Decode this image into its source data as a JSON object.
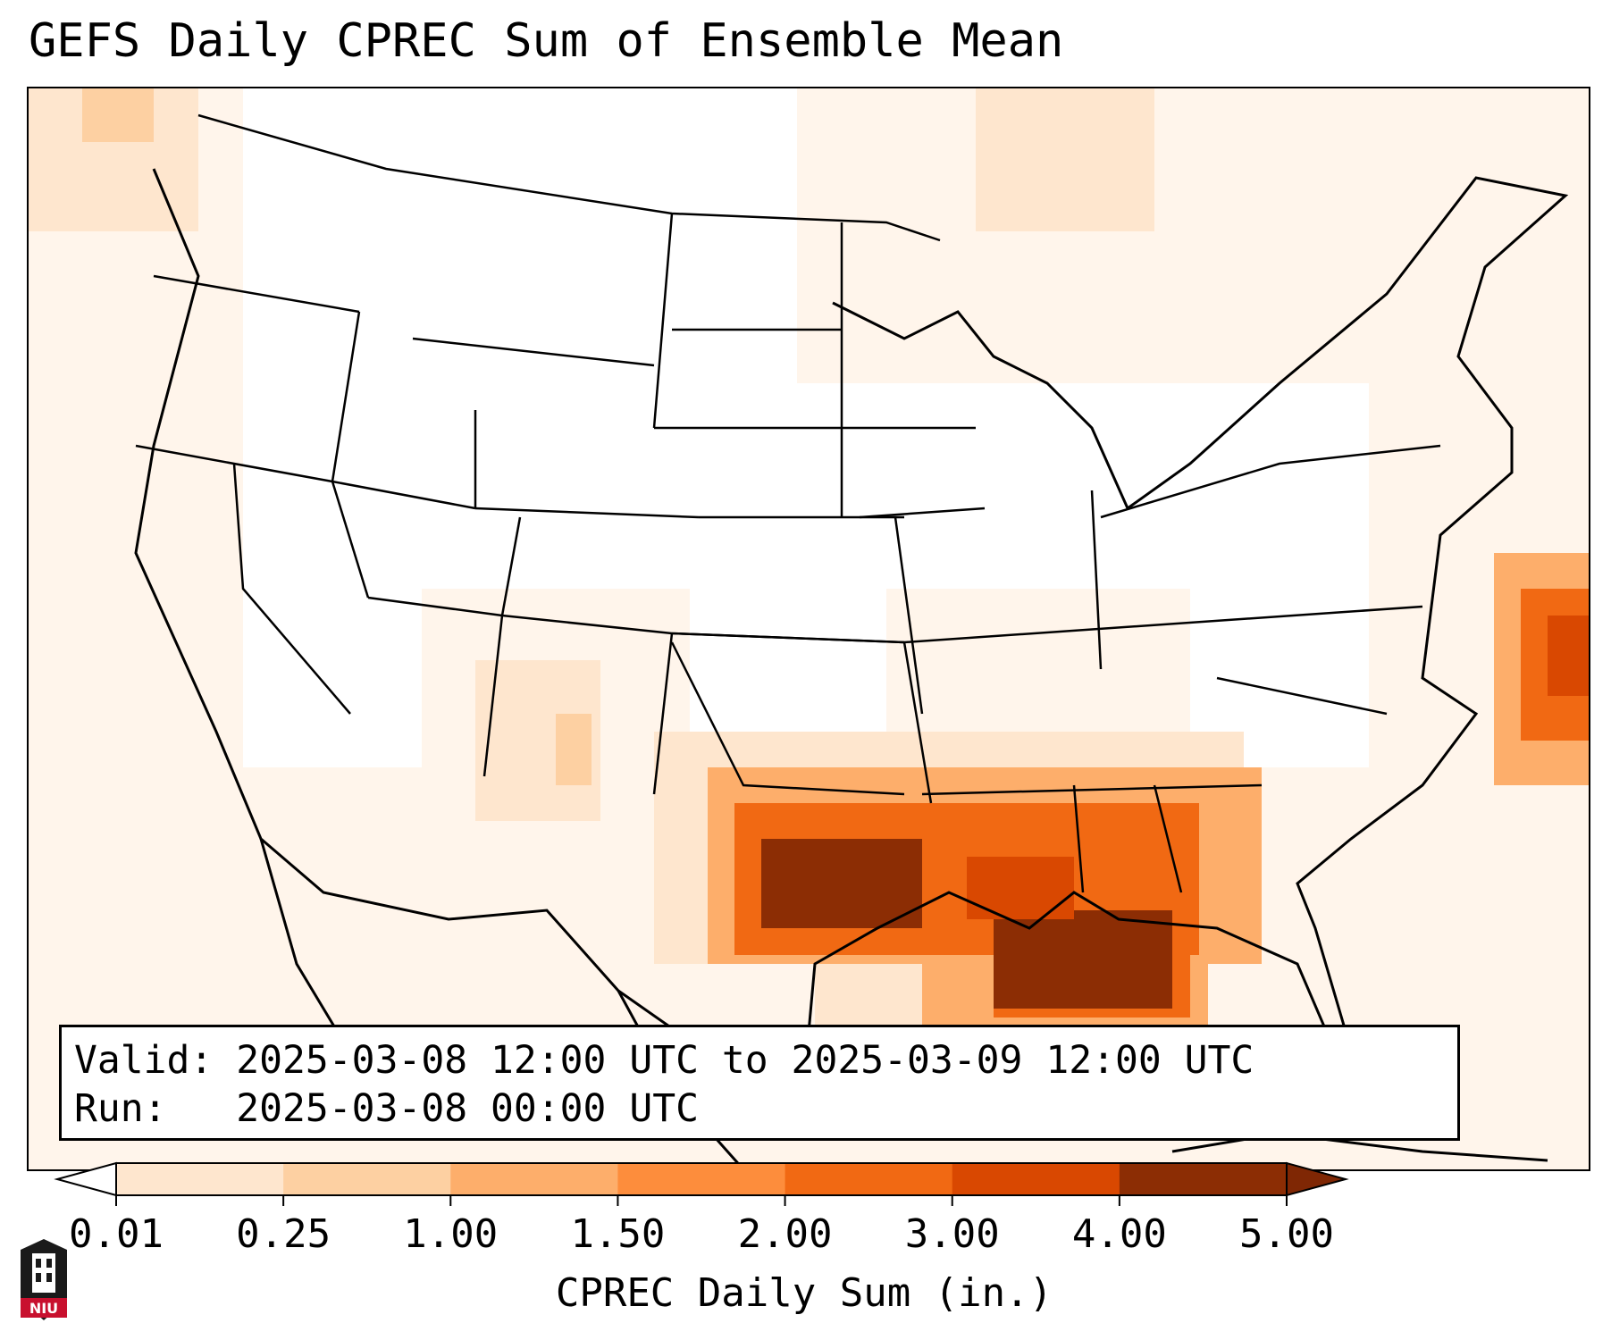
{
  "title": "GEFS Daily CPREC Sum of Ensemble Mean",
  "info": {
    "valid_label": "Valid:",
    "valid_value": "2025-03-08 12:00 UTC to 2025-03-09 12:00 UTC",
    "run_label": "Run:",
    "run_value": "2025-03-08 00:00 UTC"
  },
  "colorbar": {
    "label": "CPREC Daily Sum (in.)",
    "ticks": [
      "0.01",
      "0.25",
      "1.00",
      "1.50",
      "2.00",
      "3.00",
      "4.00",
      "5.00"
    ],
    "colors": [
      "#fff5eb",
      "#fee6ce",
      "#fdd0a2",
      "#fdae6b",
      "#fd8d3c",
      "#f16913",
      "#d94801",
      "#8c2d04"
    ],
    "under_color": "#ffffff",
    "over_color": "#7f2704"
  },
  "logo": {
    "text": "NIU",
    "colors": {
      "red": "#c8102e",
      "dark": "#1a1a1a"
    }
  }
}
